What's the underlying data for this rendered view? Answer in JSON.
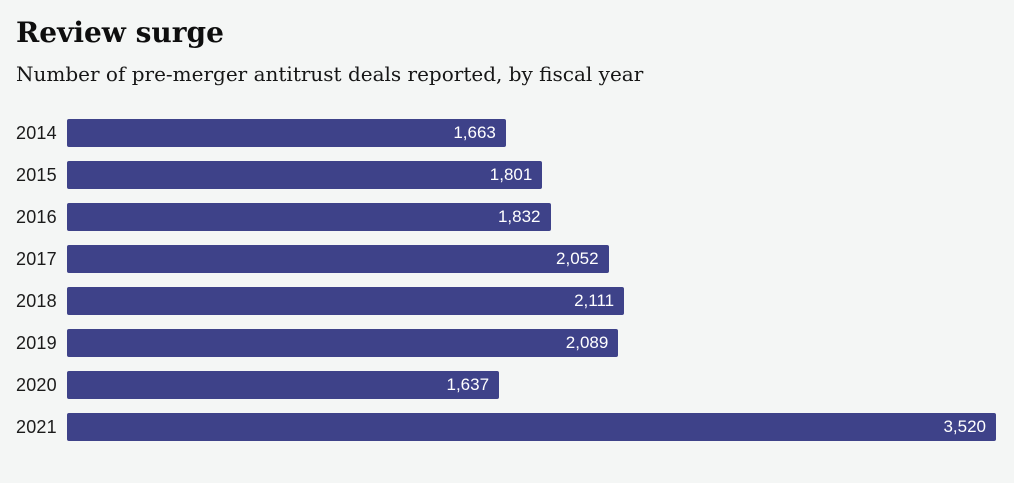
{
  "header": {
    "title": "Review surge",
    "subtitle": "Number of pre-merger antitrust deals reported, by fiscal year"
  },
  "chart_data": {
    "type": "bar",
    "orientation": "horizontal",
    "title": "Review surge",
    "subtitle": "Number of pre-merger antitrust deals reported, by fiscal year",
    "categories": [
      "2014",
      "2015",
      "2016",
      "2017",
      "2018",
      "2019",
      "2020",
      "2021"
    ],
    "values": [
      1663,
      1801,
      1832,
      2052,
      2111,
      2089,
      1637,
      3520
    ],
    "value_labels": [
      "1,663",
      "1,801",
      "1,832",
      "2,052",
      "2,111",
      "2,089",
      "1,637",
      "3,520"
    ],
    "xlim": [
      0,
      3520
    ],
    "grid": false,
    "legend": false,
    "bar_color": "#3e4289",
    "background_color": "#f4f6f5",
    "value_label_color": "#ffffff"
  }
}
